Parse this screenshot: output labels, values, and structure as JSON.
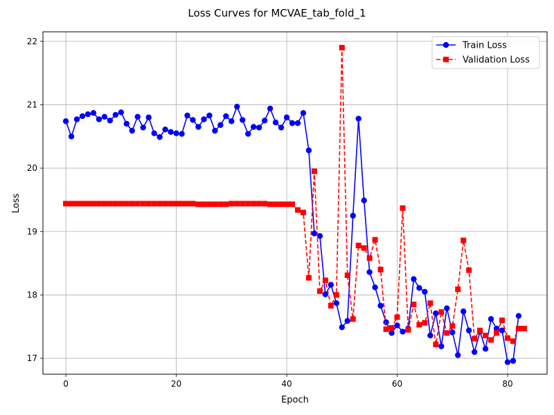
{
  "chart_data": {
    "type": "line",
    "title": "Loss Curves for MCVAE_tab_fold_1",
    "xlabel": "Epoch",
    "ylabel": "Loss",
    "xlim": [
      -4.15,
      87.15
    ],
    "ylim": [
      16.75,
      22.15
    ],
    "xticks": [
      0,
      20,
      40,
      60,
      80
    ],
    "yticks": [
      17,
      18,
      19,
      20,
      21,
      22
    ],
    "grid": true,
    "legend_position": "top-right",
    "series": [
      {
        "name": "Train Loss",
        "color": "#0000ff",
        "linestyle": "solid",
        "marker": "circle",
        "x": [
          0,
          1,
          2,
          3,
          4,
          5,
          6,
          7,
          8,
          9,
          10,
          11,
          12,
          13,
          14,
          15,
          16,
          17,
          18,
          19,
          20,
          21,
          22,
          23,
          24,
          25,
          26,
          27,
          28,
          29,
          30,
          31,
          32,
          33,
          34,
          35,
          36,
          37,
          38,
          39,
          40,
          41,
          42,
          43,
          44,
          45,
          46,
          47,
          48,
          49,
          50,
          51,
          52,
          53,
          54,
          55,
          56,
          57,
          58,
          59,
          60,
          61,
          62,
          63,
          64,
          65,
          66,
          67,
          68,
          69,
          70,
          71,
          72,
          73,
          74,
          75,
          76,
          77,
          78,
          79,
          80,
          81,
          82
        ],
        "values": [
          20.74,
          20.5,
          20.77,
          20.82,
          20.85,
          20.87,
          20.77,
          20.81,
          20.75,
          20.84,
          20.88,
          20.7,
          20.59,
          20.81,
          20.64,
          20.8,
          20.55,
          20.49,
          20.61,
          20.57,
          20.55,
          20.54,
          20.83,
          20.76,
          20.65,
          20.77,
          20.83,
          20.59,
          20.68,
          20.82,
          20.74,
          20.97,
          20.76,
          20.54,
          20.65,
          20.64,
          20.75,
          20.94,
          20.72,
          20.64,
          20.8,
          20.71,
          20.71,
          20.87,
          20.28,
          18.97,
          18.93,
          18.01,
          18.16,
          17.87,
          17.49,
          17.59,
          19.25,
          20.78,
          19.49,
          18.36,
          18.12,
          17.83,
          17.57,
          17.4,
          17.52,
          17.42,
          17.47,
          18.25,
          18.11,
          18.05,
          17.36,
          17.71,
          17.19,
          17.79,
          17.41,
          17.05,
          17.74,
          17.44,
          17.1,
          17.42,
          17.15,
          17.62,
          17.47,
          17.44,
          16.94,
          16.96,
          17.67
        ]
      },
      {
        "name": "Validation Loss",
        "color": "#ff0000",
        "linestyle": "dashed",
        "marker": "square",
        "x": [
          0,
          1,
          2,
          3,
          4,
          5,
          6,
          7,
          8,
          9,
          10,
          11,
          12,
          13,
          14,
          15,
          16,
          17,
          18,
          19,
          20,
          21,
          22,
          23,
          24,
          25,
          26,
          27,
          28,
          29,
          30,
          31,
          32,
          33,
          34,
          35,
          36,
          37,
          38,
          39,
          40,
          41,
          42,
          43,
          44,
          45,
          46,
          47,
          48,
          49,
          50,
          51,
          52,
          53,
          54,
          55,
          56,
          57,
          58,
          59,
          60,
          61,
          62,
          63,
          64,
          65,
          66,
          67,
          68,
          69,
          70,
          71,
          72,
          73,
          74,
          75,
          76,
          77,
          78,
          79,
          80,
          81,
          82,
          83
        ],
        "values": [
          19.44,
          19.44,
          19.44,
          19.44,
          19.44,
          19.44,
          19.44,
          19.44,
          19.44,
          19.44,
          19.44,
          19.44,
          19.44,
          19.44,
          19.44,
          19.44,
          19.44,
          19.44,
          19.44,
          19.44,
          19.44,
          19.44,
          19.44,
          19.44,
          19.43,
          19.43,
          19.43,
          19.43,
          19.43,
          19.43,
          19.44,
          19.44,
          19.44,
          19.44,
          19.44,
          19.44,
          19.44,
          19.43,
          19.43,
          19.43,
          19.43,
          19.43,
          19.34,
          19.3,
          18.27,
          19.95,
          18.06,
          18.23,
          17.83,
          18.0,
          21.9,
          18.31,
          17.62,
          18.78,
          18.74,
          18.58,
          18.87,
          18.4,
          17.46,
          17.48,
          17.65,
          19.37,
          17.45,
          17.85,
          17.53,
          17.56,
          17.87,
          17.22,
          17.73,
          17.4,
          17.51,
          18.09,
          18.86,
          18.39,
          17.31,
          17.44,
          17.36,
          17.29,
          17.4,
          17.6,
          17.32,
          17.27,
          17.47,
          17.47
        ]
      }
    ]
  }
}
